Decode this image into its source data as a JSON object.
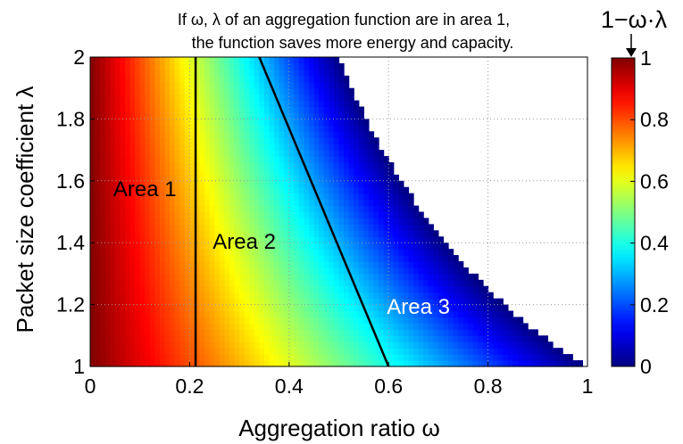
{
  "chart_data": {
    "type": "heatmap",
    "title_lines": [
      "If ω, λ of an aggregation function are in area 1,",
      "the function saves more energy and capacity."
    ],
    "xlabel": "Aggregation ratio ω",
    "ylabel": "Packet size coefficient λ",
    "xlim": [
      0,
      1
    ],
    "ylim": [
      1,
      2
    ],
    "x_ticks": [
      "0",
      "0.2",
      "0.4",
      "0.6",
      "0.8",
      "1"
    ],
    "y_ticks": [
      "1",
      "1.2",
      "1.4",
      "1.6",
      "1.8",
      "2"
    ],
    "value_formula": "1-ω·λ",
    "value_region": "ω·λ ≤ 1",
    "colormap": "jet",
    "colorbar": {
      "label": "1−ω·λ",
      "range": [
        0,
        1
      ],
      "ticks": [
        "0",
        "0.2",
        "0.4",
        "0.6",
        "0.8",
        "1"
      ]
    },
    "grid": true,
    "boundaries": [
      {
        "x": [
          0.212,
          0.212
        ],
        "y": [
          1,
          2
        ]
      },
      {
        "x": [
          0.6,
          0.34
        ],
        "y": [
          1,
          2
        ]
      }
    ],
    "annotations": [
      {
        "text": "Area 1",
        "x": 0.11,
        "y": 1.55,
        "color": "#000000"
      },
      {
        "text": "Area 2",
        "x": 0.31,
        "y": 1.38,
        "color": "#000000"
      },
      {
        "text": "Area 3",
        "x": 0.66,
        "y": 1.17,
        "color": "#ffffff"
      }
    ]
  }
}
